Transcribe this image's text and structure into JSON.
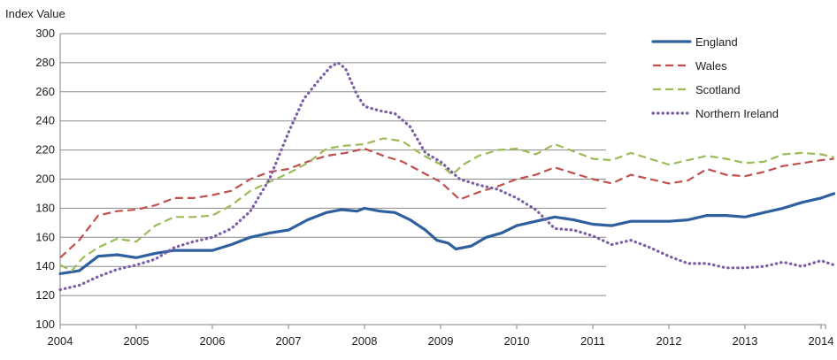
{
  "chart_data": {
    "type": "line",
    "title": "",
    "ylabel": "Index Value",
    "xlabel": "",
    "ylim": [
      100,
      300
    ],
    "y_ticks": [
      100,
      120,
      140,
      160,
      180,
      200,
      220,
      240,
      260,
      280,
      300
    ],
    "x_range": [
      2004,
      2014.17
    ],
    "x_ticks": [
      "2004",
      "2005",
      "2006",
      "2007",
      "2008",
      "2009",
      "2010",
      "2011",
      "2012",
      "2013",
      "2014"
    ],
    "grid": "horizontal",
    "legend_position": "top-right",
    "series": [
      {
        "name": "England",
        "color": "#2e5f9e",
        "style": "solid",
        "points": [
          [
            2004.0,
            135
          ],
          [
            2004.25,
            137
          ],
          [
            2004.5,
            147
          ],
          [
            2004.75,
            148
          ],
          [
            2005.0,
            146
          ],
          [
            2005.25,
            149
          ],
          [
            2005.5,
            151
          ],
          [
            2005.75,
            151
          ],
          [
            2006.0,
            151
          ],
          [
            2006.25,
            155
          ],
          [
            2006.5,
            160
          ],
          [
            2006.75,
            163
          ],
          [
            2007.0,
            165
          ],
          [
            2007.25,
            172
          ],
          [
            2007.5,
            177
          ],
          [
            2007.7,
            179
          ],
          [
            2007.9,
            178
          ],
          [
            2008.0,
            180
          ],
          [
            2008.2,
            178
          ],
          [
            2008.4,
            177
          ],
          [
            2008.6,
            172
          ],
          [
            2008.8,
            165
          ],
          [
            2008.95,
            158
          ],
          [
            2009.1,
            156
          ],
          [
            2009.2,
            152
          ],
          [
            2009.4,
            154
          ],
          [
            2009.6,
            160
          ],
          [
            2009.8,
            163
          ],
          [
            2010.0,
            168
          ],
          [
            2010.25,
            171
          ],
          [
            2010.5,
            174
          ],
          [
            2010.75,
            172
          ],
          [
            2011.0,
            169
          ],
          [
            2011.25,
            168
          ],
          [
            2011.5,
            171
          ],
          [
            2011.75,
            171
          ],
          [
            2012.0,
            171
          ],
          [
            2012.25,
            172
          ],
          [
            2012.5,
            175
          ],
          [
            2012.75,
            175
          ],
          [
            2013.0,
            174
          ],
          [
            2013.25,
            177
          ],
          [
            2013.5,
            180
          ],
          [
            2013.75,
            184
          ],
          [
            2014.0,
            187
          ],
          [
            2014.17,
            190
          ]
        ]
      },
      {
        "name": "Wales",
        "color": "#c0504d",
        "style": "dashed",
        "points": [
          [
            2004.0,
            146
          ],
          [
            2004.25,
            158
          ],
          [
            2004.5,
            175
          ],
          [
            2004.75,
            178
          ],
          [
            2005.0,
            179
          ],
          [
            2005.25,
            182
          ],
          [
            2005.5,
            187
          ],
          [
            2005.75,
            187
          ],
          [
            2006.0,
            189
          ],
          [
            2006.25,
            192
          ],
          [
            2006.5,
            200
          ],
          [
            2006.75,
            205
          ],
          [
            2007.0,
            207
          ],
          [
            2007.25,
            212
          ],
          [
            2007.5,
            216
          ],
          [
            2007.75,
            218
          ],
          [
            2008.0,
            221
          ],
          [
            2008.25,
            216
          ],
          [
            2008.5,
            212
          ],
          [
            2008.75,
            205
          ],
          [
            2009.0,
            198
          ],
          [
            2009.25,
            186
          ],
          [
            2009.5,
            191
          ],
          [
            2009.75,
            195
          ],
          [
            2010.0,
            200
          ],
          [
            2010.25,
            203
          ],
          [
            2010.5,
            208
          ],
          [
            2010.75,
            204
          ],
          [
            2011.0,
            200
          ],
          [
            2011.25,
            197
          ],
          [
            2011.5,
            203
          ],
          [
            2011.75,
            200
          ],
          [
            2012.0,
            197
          ],
          [
            2012.25,
            199
          ],
          [
            2012.5,
            207
          ],
          [
            2012.75,
            203
          ],
          [
            2013.0,
            202
          ],
          [
            2013.25,
            205
          ],
          [
            2013.5,
            209
          ],
          [
            2013.75,
            211
          ],
          [
            2014.0,
            213
          ],
          [
            2014.17,
            214
          ]
        ]
      },
      {
        "name": "Scotland",
        "color": "#9bbb59",
        "style": "dashed",
        "points": [
          [
            2004.0,
            141
          ],
          [
            2004.15,
            137
          ],
          [
            2004.3,
            146
          ],
          [
            2004.5,
            153
          ],
          [
            2004.75,
            159
          ],
          [
            2005.0,
            157
          ],
          [
            2005.25,
            168
          ],
          [
            2005.5,
            174
          ],
          [
            2005.75,
            174
          ],
          [
            2006.0,
            175
          ],
          [
            2006.25,
            182
          ],
          [
            2006.5,
            192
          ],
          [
            2006.75,
            198
          ],
          [
            2007.0,
            204
          ],
          [
            2007.25,
            211
          ],
          [
            2007.5,
            221
          ],
          [
            2007.75,
            223
          ],
          [
            2008.0,
            224
          ],
          [
            2008.25,
            228
          ],
          [
            2008.5,
            226
          ],
          [
            2008.75,
            217
          ],
          [
            2009.0,
            210
          ],
          [
            2009.15,
            203
          ],
          [
            2009.3,
            210
          ],
          [
            2009.5,
            216
          ],
          [
            2009.75,
            220
          ],
          [
            2010.0,
            221
          ],
          [
            2010.25,
            217
          ],
          [
            2010.5,
            224
          ],
          [
            2010.75,
            219
          ],
          [
            2011.0,
            214
          ],
          [
            2011.25,
            213
          ],
          [
            2011.5,
            218
          ],
          [
            2011.75,
            214
          ],
          [
            2012.0,
            210
          ],
          [
            2012.25,
            213
          ],
          [
            2012.5,
            216
          ],
          [
            2012.75,
            214
          ],
          [
            2013.0,
            211
          ],
          [
            2013.25,
            212
          ],
          [
            2013.5,
            217
          ],
          [
            2013.75,
            218
          ],
          [
            2014.0,
            217
          ],
          [
            2014.17,
            215
          ]
        ]
      },
      {
        "name": "Northern Ireland",
        "color": "#7b5ea7",
        "style": "dotted",
        "points": [
          [
            2004.0,
            124
          ],
          [
            2004.25,
            127
          ],
          [
            2004.5,
            133
          ],
          [
            2004.75,
            138
          ],
          [
            2005.0,
            141
          ],
          [
            2005.25,
            145
          ],
          [
            2005.5,
            153
          ],
          [
            2005.75,
            157
          ],
          [
            2006.0,
            160
          ],
          [
            2006.25,
            166
          ],
          [
            2006.5,
            178
          ],
          [
            2006.75,
            200
          ],
          [
            2007.0,
            232
          ],
          [
            2007.2,
            255
          ],
          [
            2007.4,
            268
          ],
          [
            2007.55,
            277
          ],
          [
            2007.65,
            280
          ],
          [
            2007.75,
            276
          ],
          [
            2007.9,
            258
          ],
          [
            2008.0,
            250
          ],
          [
            2008.2,
            247
          ],
          [
            2008.4,
            245
          ],
          [
            2008.6,
            236
          ],
          [
            2008.8,
            218
          ],
          [
            2009.0,
            212
          ],
          [
            2009.25,
            200
          ],
          [
            2009.5,
            196
          ],
          [
            2009.75,
            193
          ],
          [
            2010.0,
            187
          ],
          [
            2010.25,
            179
          ],
          [
            2010.5,
            166
          ],
          [
            2010.75,
            165
          ],
          [
            2011.0,
            161
          ],
          [
            2011.25,
            155
          ],
          [
            2011.5,
            158
          ],
          [
            2011.75,
            153
          ],
          [
            2012.0,
            147
          ],
          [
            2012.25,
            142
          ],
          [
            2012.5,
            142
          ],
          [
            2012.75,
            139
          ],
          [
            2013.0,
            139
          ],
          [
            2013.25,
            140
          ],
          [
            2013.5,
            143
          ],
          [
            2013.75,
            140
          ],
          [
            2014.0,
            144
          ],
          [
            2014.17,
            141
          ]
        ]
      }
    ]
  }
}
